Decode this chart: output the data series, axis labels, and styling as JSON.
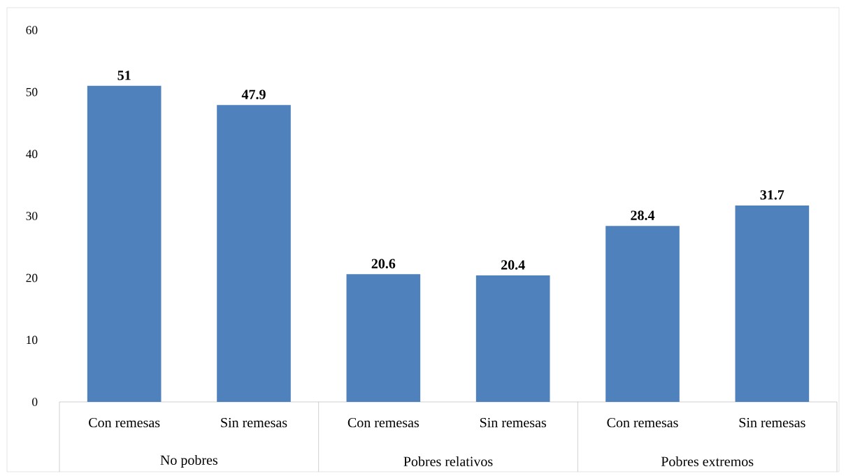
{
  "chart_data": {
    "type": "bar",
    "categories": [
      "Con remesas",
      "Sin remesas",
      "Con remesas",
      "Sin remesas",
      "Con remesas",
      "Sin remesas"
    ],
    "values": [
      51,
      47.9,
      20.6,
      20.4,
      28.4,
      31.7
    ],
    "color": "#4f81bd",
    "ylim": [
      0,
      60
    ],
    "yticks": [
      0,
      10,
      20,
      30,
      40,
      50,
      60
    ],
    "data_labels": true,
    "grid": false,
    "annotations": [
      "No pobres",
      "Pobres relativos",
      "Pobres extremos"
    ]
  }
}
